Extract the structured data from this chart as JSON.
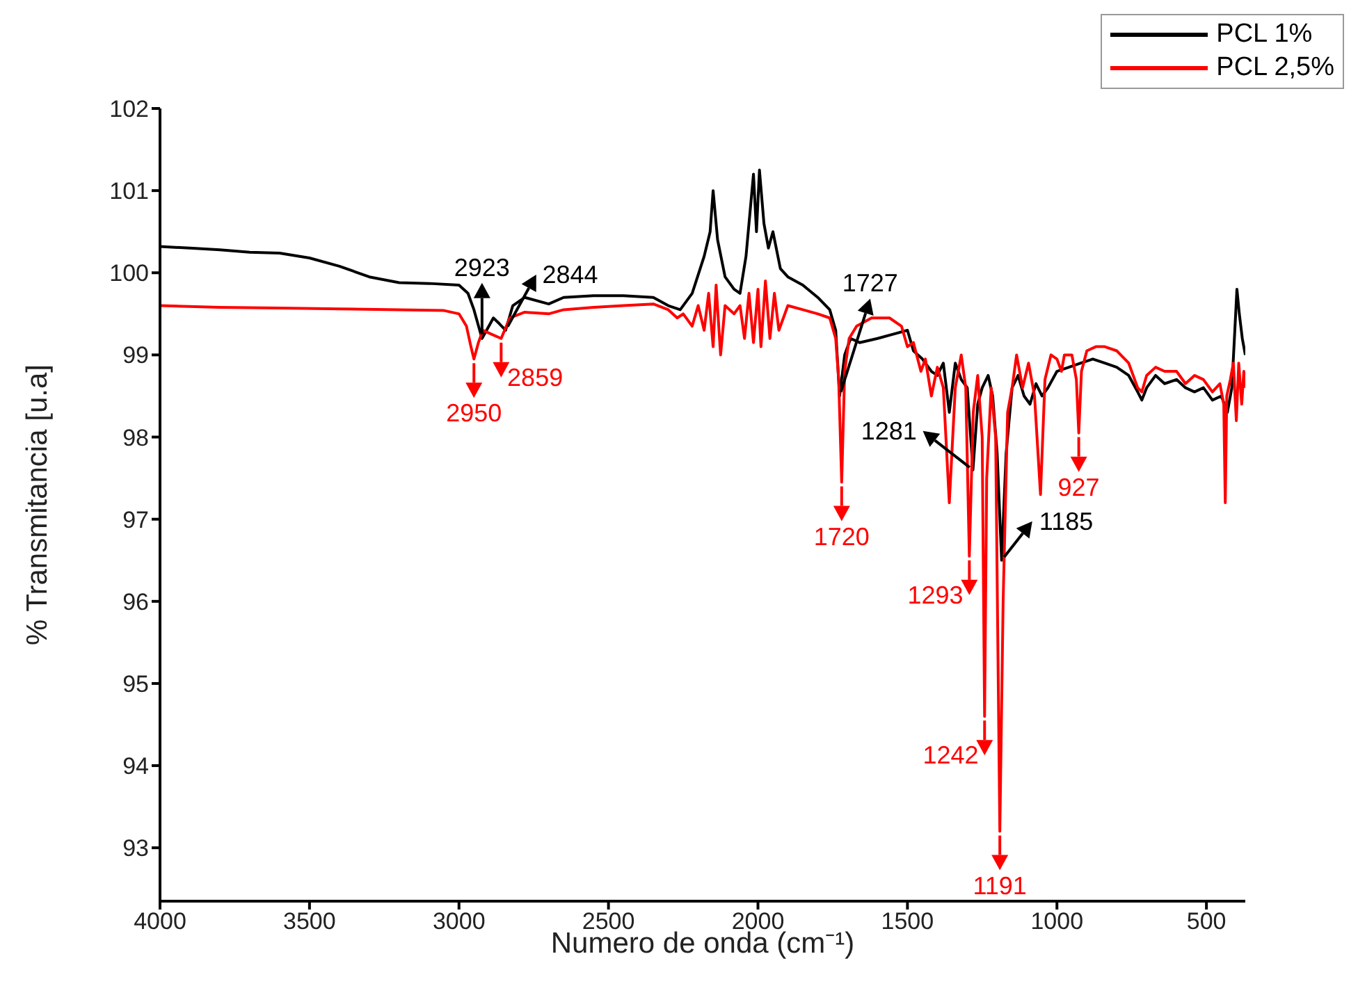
{
  "chart_data": {
    "type": "line",
    "xlabel": "Numero de onda (cm⁻¹)",
    "ylabel": "% Transmitancia [u.a]",
    "xlim": [
      4000,
      370
    ],
    "xticks": [
      4000,
      3500,
      3000,
      2500,
      2000,
      1500,
      1000,
      500
    ],
    "ylim": [
      92.35,
      102
    ],
    "yticks": [
      93,
      94,
      95,
      96,
      97,
      98,
      99,
      100,
      101,
      102
    ],
    "legend": "top right",
    "series": [
      {
        "name": "PCL 1%",
        "color": "#000000",
        "x": [
          4000,
          3900,
          3800,
          3700,
          3600,
          3500,
          3400,
          3300,
          3200,
          3100,
          3000,
          2970,
          2950,
          2923,
          2900,
          2885,
          2865,
          2844,
          2820,
          2780,
          2700,
          2650,
          2550,
          2450,
          2350,
          2300,
          2260,
          2220,
          2180,
          2160,
          2150,
          2135,
          2110,
          2080,
          2060,
          2040,
          2025,
          2015,
          2005,
          1995,
          1980,
          1965,
          1950,
          1925,
          1900,
          1850,
          1800,
          1760,
          1740,
          1727,
          1710,
          1690,
          1660,
          1600,
          1550,
          1500,
          1480,
          1450,
          1420,
          1400,
          1380,
          1360,
          1340,
          1320,
          1300,
          1281,
          1265,
          1250,
          1230,
          1215,
          1200,
          1185,
          1170,
          1150,
          1130,
          1110,
          1090,
          1070,
          1050,
          1030,
          1000,
          960,
          920,
          880,
          840,
          800,
          760,
          730,
          716,
          700,
          670,
          640,
          600,
          570,
          540,
          510,
          480,
          450,
          430,
          415,
          405,
          398,
          390,
          380,
          370
        ],
        "values": [
          100.32,
          100.3,
          100.28,
          100.25,
          100.24,
          100.18,
          100.08,
          99.95,
          99.88,
          99.87,
          99.85,
          99.75,
          99.55,
          99.2,
          99.35,
          99.45,
          99.38,
          99.3,
          99.6,
          99.7,
          99.62,
          99.7,
          99.72,
          99.72,
          99.7,
          99.6,
          99.55,
          99.75,
          100.2,
          100.5,
          101.0,
          100.4,
          99.95,
          99.8,
          99.75,
          100.2,
          100.8,
          101.2,
          100.5,
          101.25,
          100.6,
          100.3,
          100.5,
          100.05,
          99.95,
          99.85,
          99.7,
          99.55,
          99.3,
          98.5,
          99.0,
          99.2,
          99.15,
          99.2,
          99.25,
          99.3,
          99.05,
          98.95,
          98.8,
          98.75,
          98.9,
          98.3,
          98.9,
          98.7,
          98.6,
          97.6,
          98.4,
          98.6,
          98.75,
          98.5,
          97.8,
          96.5,
          97.8,
          98.6,
          98.75,
          98.5,
          98.4,
          98.65,
          98.5,
          98.6,
          98.8,
          98.85,
          98.9,
          98.95,
          98.9,
          98.85,
          98.75,
          98.55,
          98.45,
          98.6,
          98.75,
          98.65,
          98.7,
          98.6,
          98.55,
          98.6,
          98.45,
          98.5,
          98.3,
          98.6,
          99.3,
          99.8,
          99.5,
          99.2,
          99.0
        ]
      },
      {
        "name": "PCL 2,5%",
        "color": "#ff0000",
        "x": [
          4000,
          3800,
          3600,
          3400,
          3200,
          3050,
          3000,
          2975,
          2960,
          2950,
          2935,
          2920,
          2890,
          2859,
          2830,
          2780,
          2700,
          2650,
          2550,
          2450,
          2350,
          2300,
          2270,
          2250,
          2220,
          2200,
          2180,
          2165,
          2150,
          2140,
          2125,
          2110,
          2080,
          2060,
          2045,
          2030,
          2015,
          2000,
          1990,
          1975,
          1960,
          1945,
          1930,
          1900,
          1850,
          1800,
          1760,
          1740,
          1730,
          1720,
          1710,
          1695,
          1670,
          1620,
          1560,
          1520,
          1500,
          1480,
          1455,
          1440,
          1420,
          1400,
          1380,
          1360,
          1340,
          1320,
          1305,
          1293,
          1280,
          1265,
          1250,
          1242,
          1235,
          1220,
          1205,
          1191,
          1180,
          1165,
          1150,
          1135,
          1115,
          1095,
          1075,
          1055,
          1040,
          1020,
          1000,
          985,
          975,
          950,
          935,
          927,
          918,
          900,
          870,
          840,
          800,
          760,
          730,
          716,
          700,
          670,
          640,
          600,
          570,
          540,
          510,
          480,
          455,
          442,
          437,
          432,
          420,
          410,
          400,
          392,
          382,
          375,
          370
        ],
        "values": [
          99.6,
          99.58,
          99.57,
          99.56,
          99.55,
          99.54,
          99.5,
          99.35,
          99.1,
          98.95,
          99.15,
          99.3,
          99.25,
          99.2,
          99.45,
          99.52,
          99.5,
          99.55,
          99.58,
          99.6,
          99.62,
          99.55,
          99.45,
          99.5,
          99.35,
          99.6,
          99.3,
          99.75,
          99.1,
          99.85,
          99.0,
          99.6,
          99.5,
          99.6,
          99.2,
          99.75,
          99.15,
          99.8,
          99.1,
          99.9,
          99.2,
          99.75,
          99.3,
          99.6,
          99.55,
          99.5,
          99.45,
          99.2,
          98.7,
          97.45,
          98.8,
          99.2,
          99.35,
          99.45,
          99.45,
          99.35,
          99.1,
          99.15,
          98.8,
          98.95,
          98.5,
          98.85,
          98.6,
          97.2,
          98.6,
          99.0,
          98.6,
          96.55,
          98.3,
          98.75,
          98.0,
          94.6,
          97.5,
          98.6,
          98.0,
          93.2,
          96.0,
          98.3,
          98.6,
          99.0,
          98.6,
          98.9,
          98.5,
          97.3,
          98.7,
          99.0,
          98.95,
          98.8,
          99.0,
          99.0,
          98.7,
          98.05,
          98.8,
          99.05,
          99.1,
          99.1,
          99.05,
          98.9,
          98.6,
          98.55,
          98.75,
          98.85,
          98.8,
          98.8,
          98.65,
          98.75,
          98.7,
          98.55,
          98.65,
          98.4,
          97.2,
          98.5,
          98.7,
          98.9,
          98.2,
          98.9,
          98.4,
          98.8,
          98.6
        ]
      }
    ],
    "annotations": [
      {
        "text": "2923",
        "x": 2923,
        "y": 99.2
      },
      {
        "text": "2844",
        "x": 2844,
        "y": 99.3
      },
      {
        "text": "1727",
        "x": 1727,
        "y": 98.5
      },
      {
        "text": "1281",
        "x": 1281,
        "y": 97.6
      },
      {
        "text": "1185",
        "x": 1185,
        "y": 96.5
      },
      {
        "text": "2950",
        "x": 2950,
        "y": 98.95
      },
      {
        "text": "2859",
        "x": 2859,
        "y": 99.2
      },
      {
        "text": "1720",
        "x": 1720,
        "y": 97.45
      },
      {
        "text": "1293",
        "x": 1293,
        "y": 96.55
      },
      {
        "text": "1242",
        "x": 1242,
        "y": 94.6
      },
      {
        "text": "1191",
        "x": 1191,
        "y": 93.2
      },
      {
        "text": "927",
        "x": 927,
        "y": 98.05
      }
    ]
  }
}
